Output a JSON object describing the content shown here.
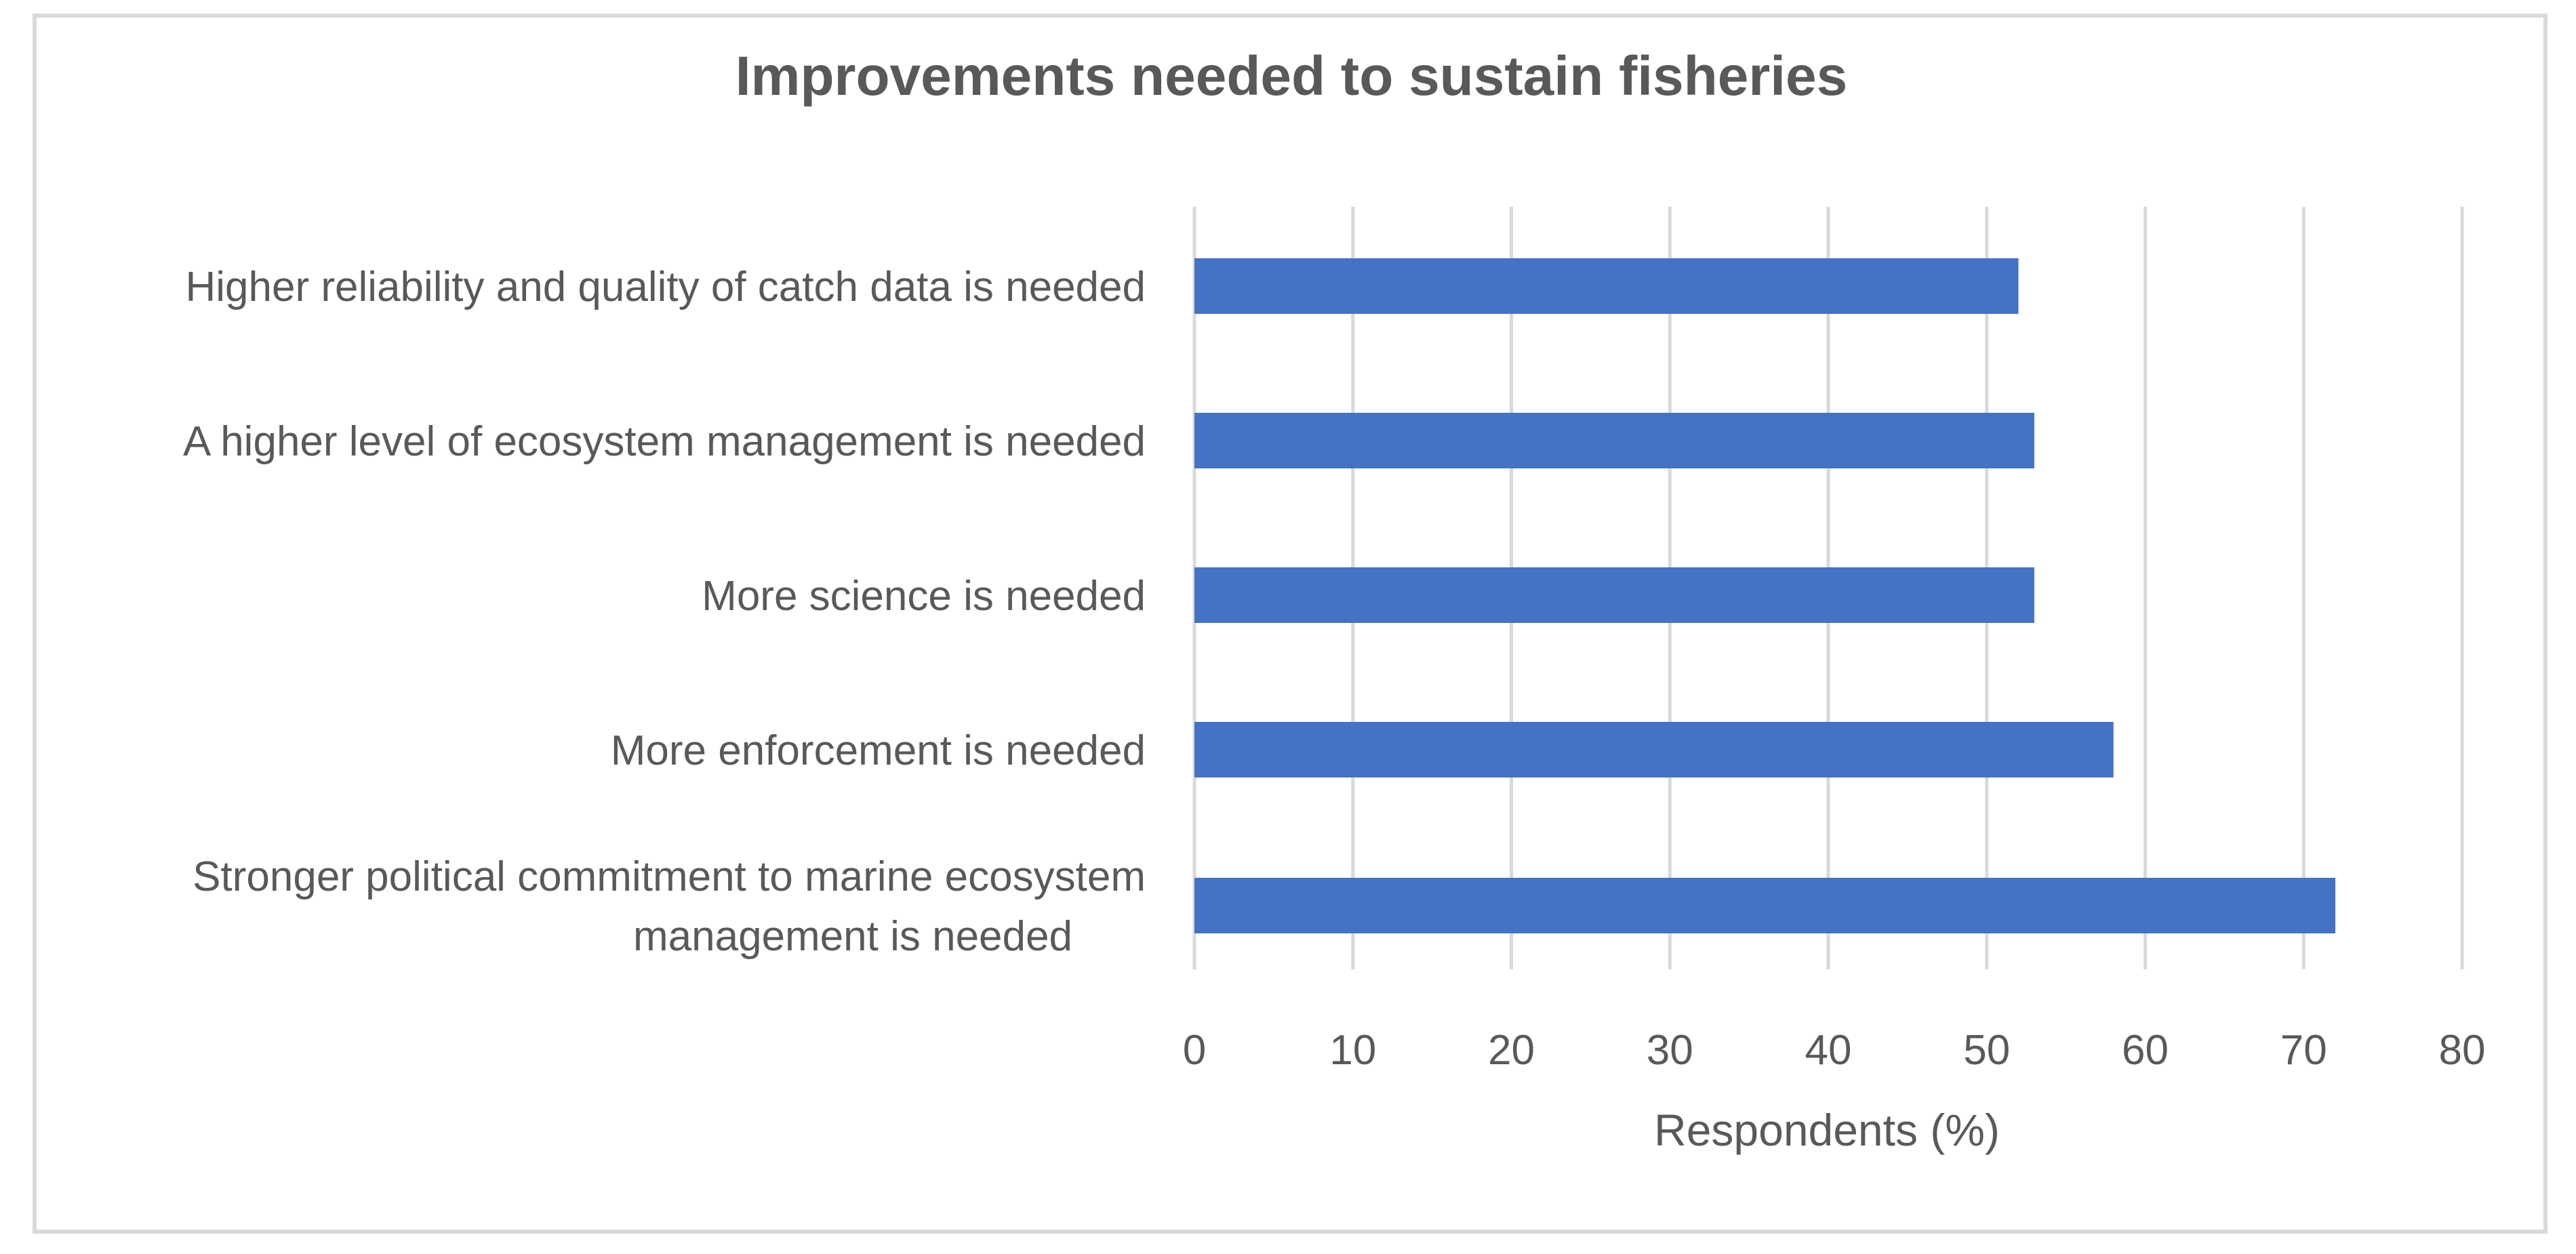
{
  "chart_data": {
    "type": "bar",
    "orientation": "horizontal",
    "title": "Improvements needed to sustain fisheries",
    "xlabel": "Respondents (%)",
    "ylabel": "",
    "categories": [
      "Higher reliability and quality of catch data is needed",
      "A higher level of ecosystem management is needed",
      "More science is needed",
      "More enforcement is needed",
      "Stronger political commitment to marine ecosystem management is needed"
    ],
    "category_lines": [
      [
        "Higher reliability and quality of catch data is needed"
      ],
      [
        "A higher level of ecosystem management is needed"
      ],
      [
        "More science is needed"
      ],
      [
        "More enforcement is needed"
      ],
      [
        "Stronger political commitment to marine ecosystem",
        "management is needed"
      ]
    ],
    "values": [
      52,
      53,
      53,
      58,
      72
    ],
    "xlim": [
      0,
      80
    ],
    "xticks": [
      "0",
      "10",
      "20",
      "30",
      "40",
      "50",
      "60",
      "70",
      "80"
    ],
    "grid": "vertical",
    "legend": "none",
    "bar_color": "#4472c4"
  }
}
